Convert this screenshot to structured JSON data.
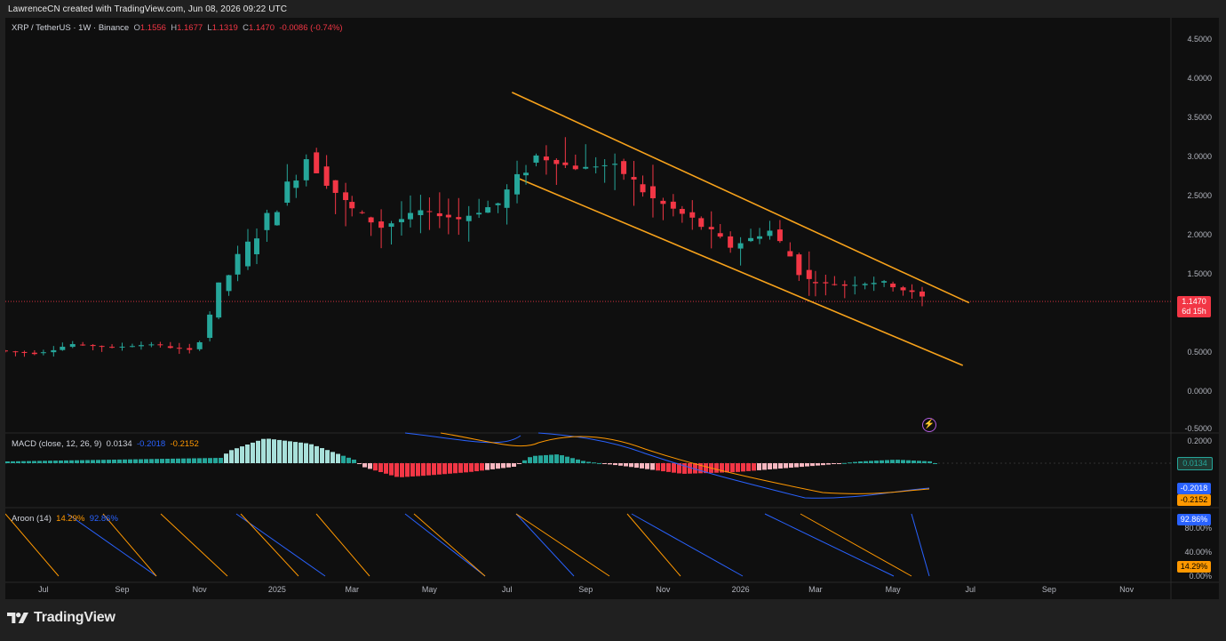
{
  "creator": "LawrenceCN created with TradingView.com, Jun 08, 2026 09:22 UTC",
  "legend": {
    "symbol": "XRP / TetherUS · 1W · Binance",
    "o_label": "O",
    "o": "1.1556",
    "h_label": "H",
    "h": "1.1677",
    "l_label": "L",
    "l": "1.1319",
    "c_label": "C",
    "c": "1.1470",
    "change": "-0.0086 (-0.74%)",
    "macd_label": "MACD (close, 12, 26, 9)",
    "macd_hist": "0.0134",
    "macd_line": "-0.2018",
    "macd_signal": "-0.2152",
    "aroon_label": "Aroon (14)",
    "aroon_down": "14.29%",
    "aroon_up": "92.86%"
  },
  "price_badge": {
    "price": "1.1470",
    "countdown": "6d 15h"
  },
  "brand": "TradingView",
  "colors": {
    "up": "#26a69a",
    "down": "#f23645",
    "channel": "#f7a21b",
    "macd": "#2962ff",
    "signal": "#ff9800",
    "hist_up": "#26a69a",
    "hist_down": "#f23645"
  },
  "icons": {
    "alert": "lightning-bolt-icon",
    "logo": "tradingview-logo-icon"
  },
  "chart_data": [
    {
      "type": "candlestick",
      "title": "XRP / TetherUS · 1W · Binance",
      "y_ticks": [
        "4.5000",
        "4.0000",
        "3.5000",
        "3.0000",
        "2.5000",
        "2.0000",
        "1.5000",
        "0.5000",
        "0.0000",
        "-0.5000"
      ],
      "ylim": [
        -0.5,
        4.5
      ],
      "x_ticks": [
        "Jul",
        "Sep",
        "Nov",
        "2025",
        "Mar",
        "May",
        "Jul",
        "Sep",
        "Nov",
        "2026",
        "Mar",
        "May",
        "Jul",
        "Sep",
        "Nov"
      ],
      "x_range": [
        "2024-06-01",
        "2026-12-01"
      ],
      "last_price": 1.147,
      "channel": {
        "upper": [
          [
            "2025-07-05",
            3.82
          ],
          [
            "2026-06-30",
            1.13
          ]
        ],
        "lower": [
          [
            "2025-07-10",
            2.72
          ],
          [
            "2026-06-25",
            0.33
          ]
        ]
      },
      "candles_monthly_approx": [
        {
          "period": "2024-06",
          "open": 0.52,
          "close": 0.48
        },
        {
          "period": "2024-07",
          "open": 0.48,
          "close": 0.6
        },
        {
          "period": "2024-08",
          "open": 0.6,
          "close": 0.56
        },
        {
          "period": "2024-09",
          "open": 0.56,
          "close": 0.6
        },
        {
          "period": "2024-10",
          "open": 0.6,
          "close": 0.52
        },
        {
          "period": "2024-11",
          "open": 0.52,
          "close": 1.5
        },
        {
          "period": "2024-12",
          "open": 1.5,
          "close": 2.2
        },
        {
          "period": "2025-01",
          "open": 2.2,
          "close": 3.0
        },
        {
          "period": "2025-02",
          "open": 3.0,
          "close": 2.4
        },
        {
          "period": "2025-03",
          "open": 2.4,
          "close": 2.1
        },
        {
          "period": "2025-04",
          "open": 2.1,
          "close": 2.3
        },
        {
          "period": "2025-05",
          "open": 2.3,
          "close": 2.2
        },
        {
          "period": "2025-06",
          "open": 2.2,
          "close": 2.4
        },
        {
          "period": "2025-07",
          "open": 2.4,
          "close": 3.0
        },
        {
          "period": "2025-08",
          "open": 3.0,
          "close": 2.85
        },
        {
          "period": "2025-09",
          "open": 2.85,
          "close": 2.9
        },
        {
          "period": "2025-10",
          "open": 2.9,
          "close": 2.45
        },
        {
          "period": "2025-11",
          "open": 2.45,
          "close": 2.2
        },
        {
          "period": "2025-12",
          "open": 2.2,
          "close": 1.85
        },
        {
          "period": "2026-01",
          "open": 1.85,
          "close": 2.05
        },
        {
          "period": "2026-02",
          "open": 2.05,
          "close": 1.4
        },
        {
          "period": "2026-03",
          "open": 1.4,
          "close": 1.35
        },
        {
          "period": "2026-04",
          "open": 1.35,
          "close": 1.4
        },
        {
          "period": "2026-05",
          "open": 1.4,
          "close": 1.2
        },
        {
          "period": "2026-06",
          "open": 1.156,
          "close": 1.147
        }
      ]
    },
    {
      "type": "bar",
      "title": "MACD (close, 12, 26, 9)",
      "y_ticks": [
        "0.2000"
      ],
      "values": {
        "histogram": 0.0134,
        "macd": -0.2018,
        "signal": -0.2152
      }
    },
    {
      "type": "line",
      "title": "Aroon (14)",
      "y_ticks": [
        "80.00%",
        "40.00%",
        "0.00%"
      ],
      "ylim": [
        0,
        100
      ],
      "series": [
        {
          "name": "Aroon Down",
          "last": 14.29
        },
        {
          "name": "Aroon Up",
          "last": 92.86
        }
      ]
    }
  ]
}
